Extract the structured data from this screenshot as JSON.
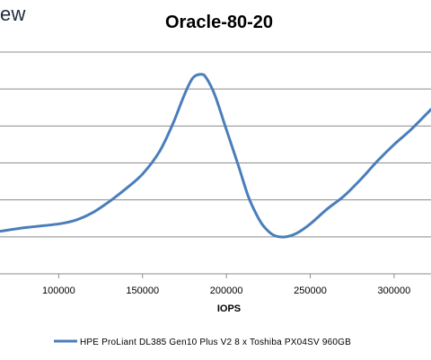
{
  "brand": {
    "text": "ew"
  },
  "chart_data": {
    "type": "line",
    "title": "Oracle-80-20",
    "xlabel": "IOPS",
    "ylabel": "",
    "x_ticks": [
      100000,
      150000,
      200000,
      250000,
      300000
    ],
    "x_tick_labels": [
      "100000",
      "150000",
      "200000",
      "250000",
      "300000"
    ],
    "xlim": [
      65000,
      322000
    ],
    "ylim": [
      0,
      6
    ],
    "grid": true,
    "legend": "bottom",
    "series": [
      {
        "name": "HPE ProLiant DL385 Gen10 Plus V2 8 x Toshiba PX04SV 960GB",
        "color": "#4a7ebb",
        "x": [
          65000,
          80000,
          100000,
          110000,
          120000,
          130000,
          140000,
          150000,
          160000,
          168000,
          175000,
          180000,
          185000,
          188000,
          193000,
          200000,
          207000,
          213000,
          218000,
          222000,
          228000,
          235000,
          242000,
          250000,
          260000,
          270000,
          280000,
          290000,
          300000,
          310000,
          322000
        ],
        "y": [
          1.15,
          1.25,
          1.35,
          1.45,
          1.65,
          1.95,
          2.3,
          2.7,
          3.3,
          4.05,
          4.85,
          5.3,
          5.4,
          5.3,
          4.85,
          3.9,
          2.95,
          2.1,
          1.6,
          1.3,
          1.05,
          1.0,
          1.1,
          1.35,
          1.75,
          2.1,
          2.55,
          3.05,
          3.5,
          3.9,
          4.45
        ]
      }
    ]
  }
}
